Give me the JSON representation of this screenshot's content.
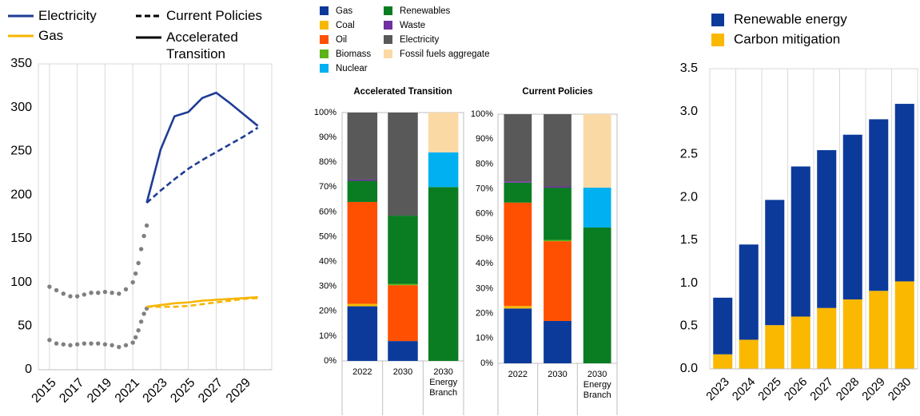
{
  "chart_data": [
    {
      "type": "line",
      "xlim": [
        2014.2,
        2031
      ],
      "xticks": [
        2015,
        2017,
        2019,
        2021,
        2023,
        2025,
        2027,
        2029
      ],
      "ylim": [
        0,
        350
      ],
      "yticks": [
        0,
        50,
        100,
        150,
        200,
        250,
        300,
        350
      ],
      "grid": "x",
      "legend": [
        {
          "label": "Electricity",
          "color": "#1f3c96",
          "style": "solid"
        },
        {
          "label": "Gas",
          "color": "#f7b500",
          "style": "solid"
        },
        {
          "label": "Current Policies",
          "color": "#000000",
          "style": "dashed"
        },
        {
          "label": "Accelerated Transition",
          "color": "#000000",
          "style": "solid"
        }
      ],
      "series": [
        {
          "color": "#808080",
          "style": "dotted",
          "x": [
            2015,
            2015.5,
            2016,
            2016.5,
            2017,
            2017.5,
            2018,
            2018.5,
            2019,
            2019.5,
            2020,
            2020.5,
            2021,
            2021.2,
            2021.4,
            2021.6,
            2021.8,
            2022
          ],
          "values": [
            95,
            91,
            87,
            84,
            84,
            86,
            88,
            88,
            89,
            88,
            87,
            92,
            100,
            110,
            122,
            138,
            153,
            165
          ]
        },
        {
          "color": "#808080",
          "style": "dotted",
          "x": [
            2015,
            2015.5,
            2016,
            2016.5,
            2017,
            2017.5,
            2018,
            2018.5,
            2019,
            2019.5,
            2020,
            2020.5,
            2021,
            2021.2,
            2021.4,
            2021.6,
            2021.8,
            2022
          ],
          "values": [
            34,
            30,
            29,
            28,
            29,
            30,
            30,
            30,
            29,
            28,
            26,
            28,
            31,
            37,
            45,
            55,
            64,
            70
          ]
        },
        {
          "color": "#1f3c96",
          "style": "solid",
          "x": [
            2022,
            2023,
            2024,
            2025,
            2026,
            2027,
            2028,
            2029,
            2030
          ],
          "values": [
            191,
            252,
            290,
            295,
            311,
            317,
            305,
            292,
            279
          ]
        },
        {
          "color": "#1f3c96",
          "style": "dashed",
          "x": [
            2022,
            2023,
            2024,
            2025,
            2026,
            2027,
            2028,
            2029,
            2030
          ],
          "values": [
            191,
            205,
            218,
            230,
            240,
            249,
            258,
            267,
            277
          ]
        },
        {
          "color": "#f7b500",
          "style": "solid",
          "x": [
            2022,
            2023,
            2024,
            2025,
            2026,
            2027,
            2028,
            2029,
            2030
          ],
          "values": [
            72,
            74,
            76,
            77,
            79,
            80,
            81,
            82,
            83
          ]
        },
        {
          "color": "#f7b500",
          "style": "dashed",
          "x": [
            2022,
            2023,
            2024,
            2025,
            2026,
            2027,
            2028,
            2029,
            2030
          ],
          "values": [
            72,
            72,
            72,
            73,
            75,
            77,
            79,
            81,
            82
          ]
        }
      ]
    },
    {
      "type": "bar",
      "stacked": true,
      "categories": [
        [
          "2022"
        ],
        [
          "2030"
        ],
        [
          "2030",
          "Energy",
          "Branch"
        ]
      ],
      "ylim": [
        0,
        100
      ],
      "yticks": [
        {
          "value": 0,
          "label": "0%"
        },
        {
          "value": 10,
          "label": "10%"
        },
        {
          "value": 20,
          "label": "20%"
        },
        {
          "value": 30,
          "label": "30%"
        },
        {
          "value": 40,
          "label": "40%"
        },
        {
          "value": 50,
          "label": "50%"
        },
        {
          "value": 60,
          "label": "60%"
        },
        {
          "value": 70,
          "label": "70%"
        },
        {
          "value": 80,
          "label": "80%"
        },
        {
          "value": 90,
          "label": "90%"
        },
        {
          "value": 100,
          "label": "100%"
        }
      ],
      "series": [
        {
          "name": "Gas",
          "color": "#0b3a9b"
        },
        {
          "name": "Coal",
          "color": "#f5b800"
        },
        {
          "name": "Oil",
          "color": "#ff4f00"
        },
        {
          "name": "Biomass",
          "color": "#5bb318"
        },
        {
          "name": "Renewables",
          "color": "#0a7d23"
        },
        {
          "name": "Nuclear",
          "color": "#00b0f0"
        },
        {
          "name": "Waste",
          "color": "#7030a0"
        },
        {
          "name": "Electricity",
          "color": "#595959"
        },
        {
          "name": "Fossil fuels aggregate",
          "color": "#fbd9a5"
        }
      ],
      "panels": [
        {
          "title": "Accelerated Transition",
          "values": [
            [
              22,
              8,
              0
            ],
            [
              1,
              0,
              0
            ],
            [
              41,
              22.5,
              0
            ],
            [
              0,
              0.5,
              0
            ],
            [
              8.5,
              27.5,
              70
            ],
            [
              0,
              0,
              14
            ],
            [
              0.5,
              0,
              0
            ],
            [
              27,
              41.5,
              0
            ],
            [
              0,
              0,
              16
            ]
          ]
        },
        {
          "title": "Current Policies",
          "values": [
            [
              22,
              17,
              0
            ],
            [
              1,
              0,
              0
            ],
            [
              41.5,
              32,
              0
            ],
            [
              0,
              0.5,
              0
            ],
            [
              8,
              21,
              54.5
            ],
            [
              0,
              0,
              16
            ],
            [
              0.5,
              0.5,
              0
            ],
            [
              27,
              29,
              0
            ],
            [
              0,
              0,
              29.5
            ]
          ]
        }
      ]
    },
    {
      "type": "bar",
      "stacked": true,
      "categories": [
        "2023",
        "2024",
        "2025",
        "2026",
        "2027",
        "2028",
        "2029",
        "2030"
      ],
      "ylim": [
        0,
        3.5
      ],
      "yticks": [
        {
          "value": 0,
          "label": "0.0"
        },
        0.5,
        {
          "value": 1,
          "label": "1.0"
        },
        1.5,
        {
          "value": 2,
          "label": "2.0"
        },
        2.5,
        {
          "value": 3,
          "label": "3.0"
        },
        3.5
      ],
      "series": [
        {
          "name": "Carbon mitigation",
          "color": "#fbb800",
          "values": [
            0.17,
            0.34,
            0.51,
            0.61,
            0.71,
            0.81,
            0.91,
            1.02
          ]
        },
        {
          "name": "Renewable energy",
          "color": "#0b3a9b",
          "values": [
            0.66,
            1.11,
            1.46,
            1.75,
            1.84,
            1.92,
            2.0,
            2.07
          ]
        }
      ]
    }
  ]
}
